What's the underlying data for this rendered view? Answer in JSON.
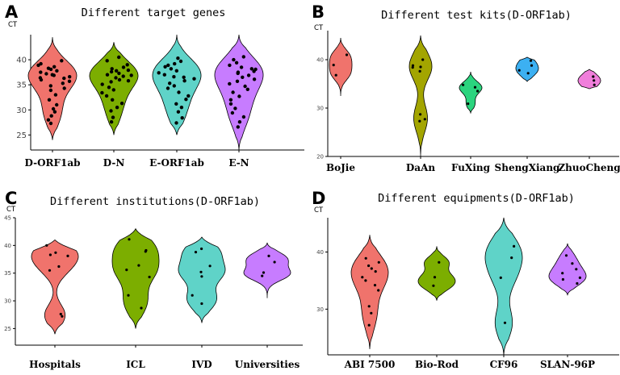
{
  "chart_data": [
    {
      "id": "A",
      "type": "violin",
      "title": "Different target genes",
      "ylabel": "CT",
      "ylim": [
        22,
        45
      ],
      "yticks": [
        25,
        30,
        35,
        40
      ],
      "categories": [
        "D-ORF1ab",
        "D-N",
        "E-ORF1ab",
        "E-N"
      ],
      "colors": [
        "#F0736C",
        "#7CAE00",
        "#5FD3C8",
        "#C77CFF"
      ],
      "series": [
        {
          "range": [
            24,
            44.5
          ],
          "points": [
            39.8,
            39.2,
            38.6,
            38.3,
            38.1,
            37.8,
            37.5,
            37.2,
            36.9,
            36.6,
            36.3,
            36.0,
            35.7,
            35.3,
            34.8,
            34.3,
            33.9,
            33.0,
            32.0,
            31.0,
            30.2,
            29.6,
            28.8,
            28.0,
            27.3,
            37.0,
            38.9,
            36.4
          ]
        },
        {
          "range": [
            25,
            43.5
          ],
          "points": [
            40.5,
            39.8,
            39.0,
            38.5,
            38.2,
            37.9,
            37.6,
            37.3,
            37.0,
            36.7,
            36.4,
            36.0,
            35.6,
            35.1,
            34.5,
            34.0,
            33.4,
            32.8,
            32.0,
            31.3,
            30.5,
            29.8,
            28.5,
            27.6,
            37.8,
            36.9,
            35.8
          ]
        },
        {
          "range": [
            25,
            45
          ],
          "points": [
            40.3,
            39.7,
            39.2,
            38.6,
            38.2,
            37.8,
            37.4,
            37.0,
            36.6,
            36.2,
            35.8,
            35.3,
            34.8,
            34.3,
            33.5,
            32.8,
            32.1,
            31.2,
            30.5,
            29.6,
            28.4,
            27.4,
            38.9,
            36.5
          ]
        },
        {
          "range": [
            22,
            45
          ],
          "points": [
            40.6,
            40.0,
            39.4,
            38.9,
            38.5,
            38.1,
            37.7,
            37.3,
            36.9,
            36.5,
            36.1,
            35.7,
            35.2,
            34.7,
            34.1,
            33.5,
            32.7,
            32.0,
            31.2,
            30.3,
            29.4,
            28.6,
            27.6,
            26.6,
            38.2,
            37.5
          ]
        }
      ]
    },
    {
      "id": "B",
      "type": "violin",
      "title": "Different test kits(D-ORF1ab)",
      "ylabel": "CT",
      "ylim": [
        20,
        46
      ],
      "yticks": [
        20,
        30,
        40
      ],
      "categories": [
        "BoJie",
        "DaAn",
        "FuXing",
        "ShengXiang",
        "ZhuoCheng"
      ],
      "colors": [
        "#F0736C",
        "#A3A500",
        "#2BD47E",
        "#3CB0F2",
        "#F07EDB"
      ],
      "series": [
        {
          "range": [
            32.5,
            44.5
          ],
          "points": [
            41.0,
            38.9,
            36.8
          ]
        },
        {
          "range": [
            20,
            45
          ],
          "points": [
            40.0,
            38.8,
            38.4,
            38.5,
            37.6,
            28.7,
            27.7,
            27.3
          ]
        },
        {
          "range": [
            29,
            37.5
          ],
          "points": [
            34.3,
            33.5,
            30.9,
            34.8
          ]
        },
        {
          "range": [
            35.5,
            40.5
          ],
          "points": [
            39.8,
            38.8,
            37.8,
            37.2
          ]
        },
        {
          "range": [
            34,
            38
          ],
          "points": [
            36.5,
            35.7,
            34.8
          ]
        }
      ]
    },
    {
      "id": "C",
      "type": "violin",
      "title": "Different institutions(D-ORF1ab)",
      "ylabel": "CT",
      "ylim": [
        22,
        45
      ],
      "yticks": [
        25,
        30,
        35,
        40,
        45
      ],
      "categories": [
        "Hospitals",
        "ICL",
        "IVD",
        "Universities"
      ],
      "colors": [
        "#F0736C",
        "#7CAE00",
        "#5FD3C8",
        "#C77CFF"
      ],
      "series": [
        {
          "range": [
            24,
            41
          ],
          "points": [
            40.0,
            38.7,
            38.3,
            38.1,
            36.2,
            35.5,
            27.6,
            27.2
          ]
        },
        {
          "range": [
            25,
            43
          ],
          "points": [
            41.1,
            39.1,
            38.9,
            36.4,
            35.6,
            34.3,
            31.0,
            28.7
          ]
        },
        {
          "range": [
            26,
            41.5
          ],
          "points": [
            39.4,
            38.8,
            36.3,
            35.2,
            34.4,
            31.0,
            29.5
          ]
        },
        {
          "range": [
            30.5,
            40.5
          ],
          "points": [
            38.1,
            37.0,
            35.1,
            34.5
          ]
        }
      ]
    },
    {
      "id": "D",
      "type": "violin",
      "title": "Different equipments(D-ORF1ab)",
      "ylabel": "CT",
      "ylim": [
        22,
        46
      ],
      "yticks": [
        30,
        40
      ],
      "categories": [
        "ABI 7500",
        "Bio-Rod",
        "CF96",
        "SLAN-96P"
      ],
      "colors": [
        "#F0736C",
        "#7CAE00",
        "#5FD3C8",
        "#C77CFF"
      ],
      "series": [
        {
          "range": [
            23,
            43
          ],
          "points": [
            38.9,
            38.2,
            37.6,
            37.1,
            36.6,
            35.6,
            35.0,
            34.2,
            33.3,
            30.5,
            29.3,
            27.2
          ]
        },
        {
          "range": [
            31.5,
            41
          ],
          "points": [
            38.2,
            35.6,
            34.1
          ]
        },
        {
          "range": [
            22,
            46
          ],
          "points": [
            41.0,
            39.0,
            35.5,
            27.6
          ]
        },
        {
          "range": [
            32.5,
            41.5
          ],
          "points": [
            39.4,
            38.0,
            37.0,
            36.3,
            35.5,
            35.2,
            34.5
          ]
        }
      ]
    }
  ]
}
